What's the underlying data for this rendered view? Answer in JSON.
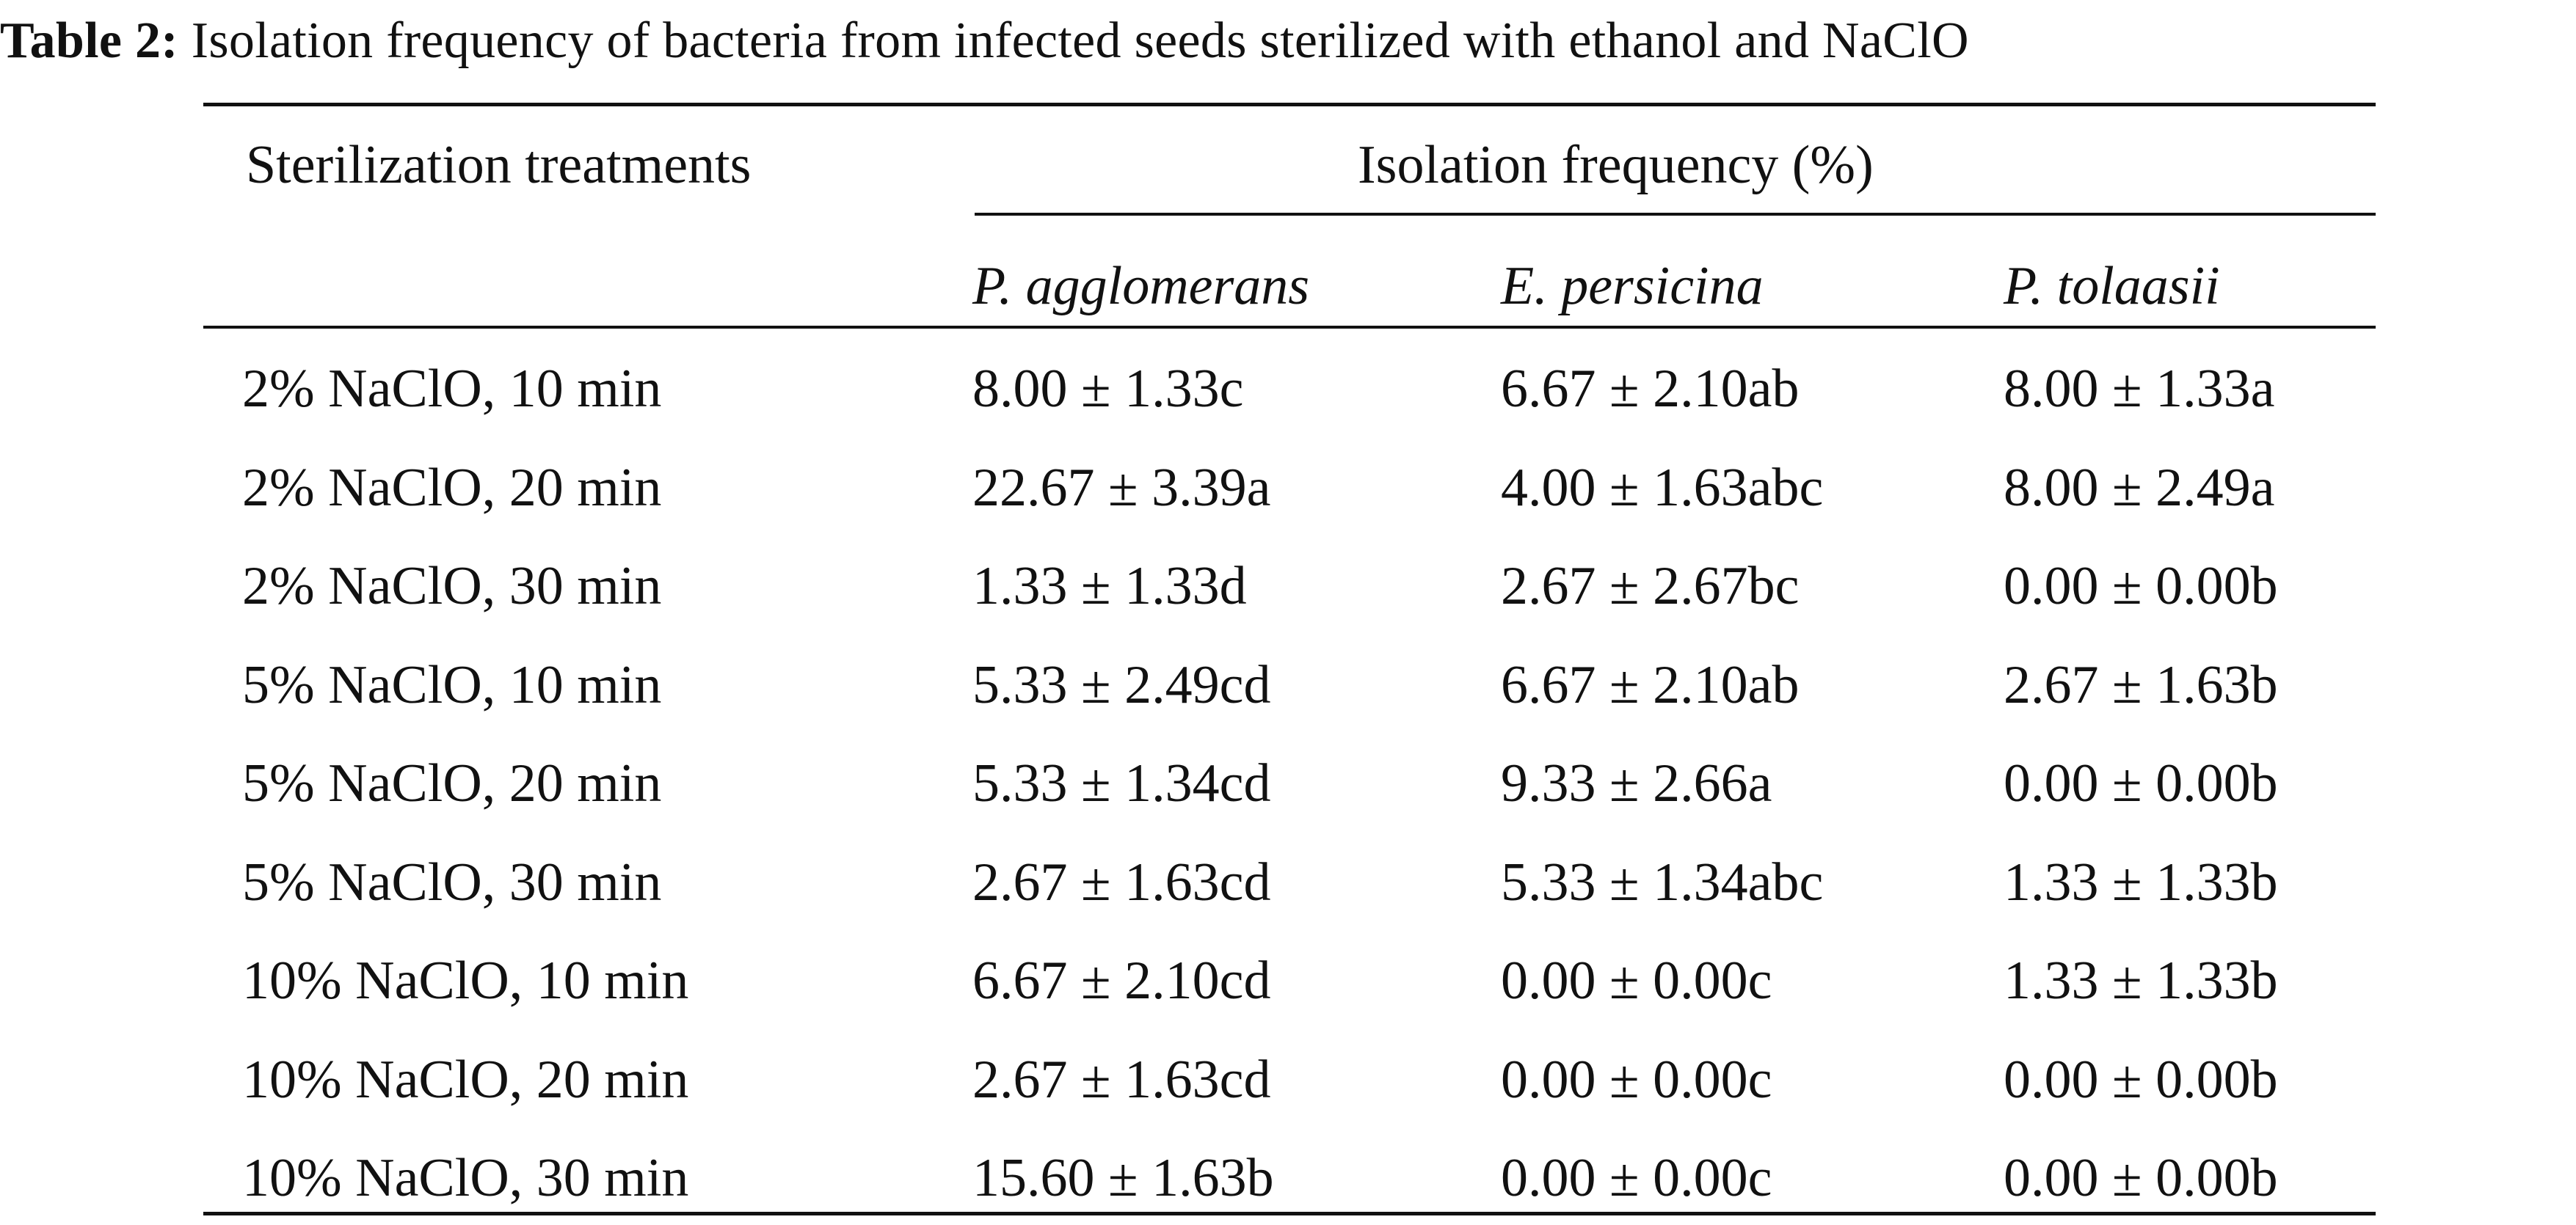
{
  "caption": {
    "label": "Table 2:",
    "text": "Isolation frequency of bacteria from infected seeds sterilized with ethanol and NaClO"
  },
  "table": {
    "header": {
      "treatment": "Sterilization treatments",
      "group": "Isolation frequency (%)",
      "species": [
        "P. agglomerans",
        "E. persicina",
        "P. tolaasii"
      ]
    },
    "rows": [
      {
        "treatment": "2% NaClO, 10 min",
        "values": [
          "8.00 ± 1.33c",
          "6.67 ± 2.10ab",
          "8.00 ± 1.33a"
        ]
      },
      {
        "treatment": "2% NaClO, 20 min",
        "values": [
          "22.67 ± 3.39a",
          "4.00 ± 1.63abc",
          "8.00 ± 2.49a"
        ]
      },
      {
        "treatment": "2% NaClO, 30 min",
        "values": [
          "1.33 ± 1.33d",
          "2.67 ± 2.67bc",
          "0.00 ± 0.00b"
        ]
      },
      {
        "treatment": "5% NaClO, 10 min",
        "values": [
          "5.33 ± 2.49cd",
          "6.67 ± 2.10ab",
          "2.67 ± 1.63b"
        ]
      },
      {
        "treatment": "5% NaClO, 20 min",
        "values": [
          "5.33 ± 1.34cd",
          "9.33 ± 2.66a",
          "0.00 ± 0.00b"
        ]
      },
      {
        "treatment": "5% NaClO, 30 min",
        "values": [
          "2.67 ± 1.63cd",
          "5.33 ± 1.34abc",
          "1.33 ± 1.33b"
        ]
      },
      {
        "treatment": "10% NaClO, 10 min",
        "values": [
          "6.67 ± 2.10cd",
          "0.00 ± 0.00c",
          "1.33 ± 1.33b"
        ]
      },
      {
        "treatment": "10% NaClO, 20 min",
        "values": [
          "2.67 ± 1.63cd",
          "0.00 ± 0.00c",
          "0.00 ± 0.00b"
        ]
      },
      {
        "treatment": "10% NaClO, 30 min",
        "values": [
          "15.60 ± 1.63b",
          "0.00 ± 0.00c",
          "0.00 ± 0.00b"
        ]
      }
    ]
  }
}
